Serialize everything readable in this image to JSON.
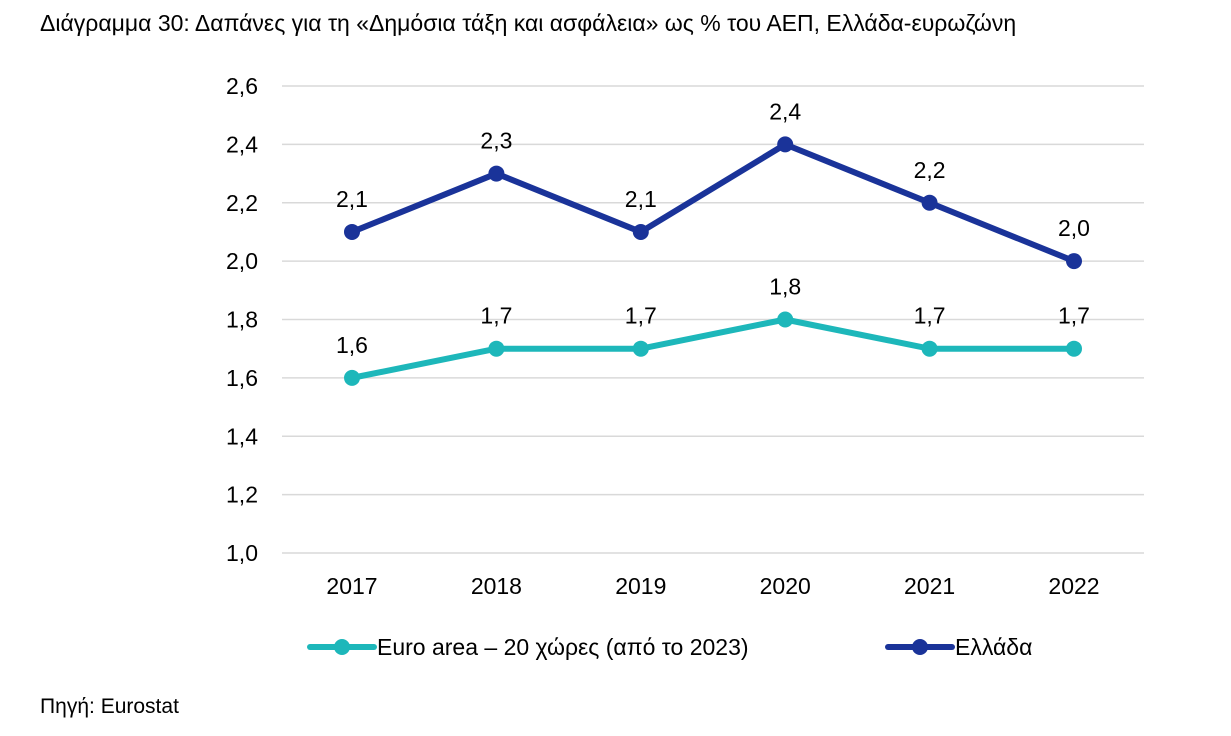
{
  "title": "Διάγραμμα 30: Δαπάνες για τη «Δημόσια τάξη και ασφάλεια» ως % του ΑΕΠ, Ελλάδα-ευρωζώνη",
  "source": "Πηγή: Eurostat",
  "chart_data": {
    "type": "line",
    "x": [
      "2017",
      "2018",
      "2019",
      "2020",
      "2021",
      "2022"
    ],
    "series": [
      {
        "name": "Euro area – 20 χώρες (από το 2023)",
        "color": "#1DB7BA",
        "values": [
          1.6,
          1.7,
          1.7,
          1.8,
          1.7,
          1.7
        ],
        "labels": [
          "1,6",
          "1,7",
          "1,7",
          "1,8",
          "1,7",
          "1,7"
        ]
      },
      {
        "name": "Ελλάδα",
        "color": "#1A3399",
        "values": [
          2.1,
          2.3,
          2.1,
          2.4,
          2.2,
          2.0
        ],
        "labels": [
          "2,1",
          "2,3",
          "2,1",
          "2,4",
          "2,2",
          "2,0"
        ]
      }
    ],
    "yticks": [
      "1,0",
      "1,2",
      "1,4",
      "1,6",
      "1,8",
      "2,0",
      "2,2",
      "2,4",
      "2,6"
    ],
    "ylim": [
      1.0,
      2.6
    ],
    "ystep": 0.2,
    "grid": "horizontal",
    "legend_position": "bottom",
    "gridline_color": "#D9D9D9"
  }
}
